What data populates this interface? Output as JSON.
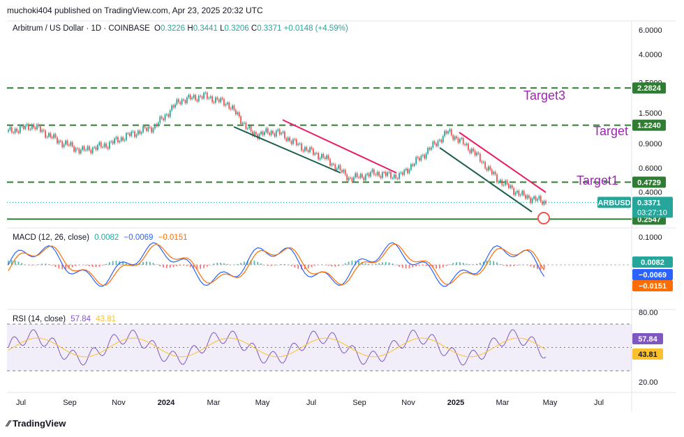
{
  "header": {
    "published_by": "muchoki404 published on TradingView.com, Apr 23, 2025 20:32 UTC"
  },
  "footer": {
    "logo_text": "TradingView"
  },
  "colors": {
    "up": "#26a69a",
    "down": "#ef5350",
    "support": "#2e7d32",
    "target_text": "#9c27b0",
    "macd": "#2962ff",
    "signal": "#ff6d00",
    "rsi": "#7e57c2",
    "rsi_ma": "#fbc02d",
    "trend_up": "#e91e63",
    "trend_down": "#1b5e4a"
  },
  "chart_data": [
    {
      "type": "line",
      "id": "price",
      "title": "Arbitrum / US Dollar · 1D · COINBASE",
      "ohlc": {
        "o_label": "O",
        "o": "0.3226",
        "h_label": "H",
        "h": "0.3441",
        "l_label": "L",
        "l": "0.3206",
        "c_label": "C",
        "c": "0.3371",
        "change": "+0.0148 (+4.59%)"
      },
      "scale": "log",
      "ylim": [
        0.22,
        7.0
      ],
      "y_ticks": [
        "6.0000",
        "4.0000",
        "2.5000",
        "1.5000",
        "0.9000",
        "0.6000",
        "0.4000"
      ],
      "x_ticks": [
        "Jul",
        "Sep",
        "Nov",
        "2024",
        "Mar",
        "May",
        "Jul",
        "Sep",
        "Nov",
        "2025",
        "Mar",
        "May",
        "Jul"
      ],
      "last_price": {
        "symbol": "ARBUSD",
        "value": "0.3371",
        "countdown": "03:27:10"
      },
      "levels": [
        {
          "value": 2.2824,
          "label": "2.2824"
        },
        {
          "value": 1.224,
          "label": "1.2240"
        },
        {
          "value": 0.4729,
          "label": "0.4729"
        },
        {
          "value": 0.2547,
          "label": "0.2547"
        }
      ],
      "annotations": [
        "Target3",
        "Target",
        "Target1"
      ],
      "series": [
        {
          "x": [
            "Jun 2023",
            "Jul 2023",
            "Aug 2023",
            "Sep 2023",
            "Oct 2023",
            "Nov 2023",
            "Dec 2023",
            "Jan 2024",
            "Feb 2024",
            "Mar 2024",
            "Apr 2024",
            "May 2024",
            "Jun 2024",
            "Jul 2024",
            "Aug 2024",
            "Sep 2024",
            "Oct 2024",
            "Nov 2024",
            "Dec 2024",
            "Jan 2025",
            "Feb 2025",
            "Mar 2025",
            "Apr 2025"
          ],
          "values": [
            1.1,
            1.22,
            0.95,
            0.8,
            0.88,
            1.05,
            1.2,
            1.85,
            2.0,
            1.75,
            1.05,
            1.1,
            0.85,
            0.7,
            0.5,
            0.55,
            0.52,
            0.75,
            1.1,
            0.8,
            0.5,
            0.38,
            0.3371
          ]
        }
      ]
    },
    {
      "type": "line",
      "id": "macd",
      "title": "MACD (12, 26, close)",
      "values_shown": [
        "0.0082",
        "−0.0069",
        "−0.0151"
      ],
      "y_ticks": [
        "0.1000"
      ],
      "badges": [
        "0.0082",
        "−0.0069",
        "−0.0151"
      ]
    },
    {
      "type": "line",
      "id": "rsi",
      "title": "RSI (14, close)",
      "values_shown": [
        "57.84",
        "43.81"
      ],
      "y_ticks": [
        "80.00",
        "20.00"
      ],
      "badges": [
        "57.84",
        "43.81"
      ]
    }
  ]
}
